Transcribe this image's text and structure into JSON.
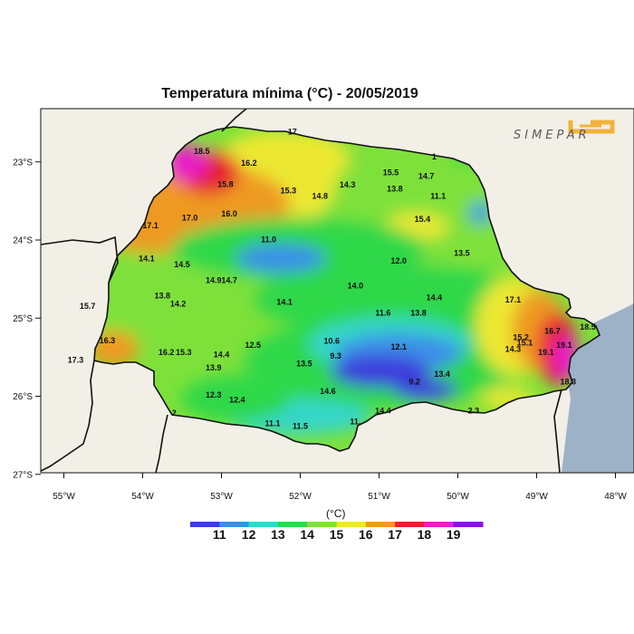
{
  "title": "Temperatura mínima   (°C)  -  20/05/2019",
  "logo": "SIMEPAR",
  "legend": {
    "unit": "(°C)",
    "labels": [
      "11",
      "12",
      "13",
      "14",
      "15",
      "16",
      "17",
      "18",
      "19"
    ],
    "colors": [
      "#3d3ddc",
      "#3a8fe8",
      "#36d6c8",
      "#2ed84a",
      "#7ee13a",
      "#ece832",
      "#ee9a20",
      "#e6202e",
      "#e81ec8",
      "#8a12d8"
    ]
  },
  "axes": {
    "x_ticks": [
      "55°W",
      "54°W",
      "53°W",
      "52°W",
      "51°W",
      "50°W",
      "49°W",
      "48°W"
    ],
    "y_ticks": [
      "23°S",
      "24°S",
      "25°S",
      "26°S",
      "27°S"
    ]
  },
  "colors": {
    "land_background": "#f1efe6",
    "ocean": "#9db2c7",
    "border": "#111111"
  },
  "stations": [
    {
      "v": "18.5",
      "lon": -53.25,
      "lat": -22.9
    },
    {
      "v": "16.2",
      "lon": -52.65,
      "lat": -23.05
    },
    {
      "v": "15.8",
      "lon": -52.95,
      "lat": -23.32
    },
    {
      "v": "17",
      "lon": -52.1,
      "lat": -22.65
    },
    {
      "v": "17.0",
      "lon": -53.4,
      "lat": -23.75
    },
    {
      "v": "17.1",
      "lon": -53.9,
      "lat": -23.85
    },
    {
      "v": "16.0",
      "lon": -52.9,
      "lat": -23.7
    },
    {
      "v": "15.3",
      "lon": -52.15,
      "lat": -23.4
    },
    {
      "v": "14.8",
      "lon": -51.75,
      "lat": -23.47
    },
    {
      "v": "14.3",
      "lon": -51.4,
      "lat": -23.33
    },
    {
      "v": "15.5",
      "lon": -50.85,
      "lat": -23.17
    },
    {
      "v": "13.8",
      "lon": -50.8,
      "lat": -23.38
    },
    {
      "v": "14.7",
      "lon": -50.4,
      "lat": -23.22
    },
    {
      "v": "1",
      "lon": -50.3,
      "lat": -22.97
    },
    {
      "v": "11.1",
      "lon": -50.25,
      "lat": -23.47
    },
    {
      "v": "15.4",
      "lon": -50.45,
      "lat": -23.77
    },
    {
      "v": "11.0",
      "lon": -52.4,
      "lat": -24.03
    },
    {
      "v": "14.1",
      "lon": -53.95,
      "lat": -24.27
    },
    {
      "v": "14.5",
      "lon": -53.5,
      "lat": -24.35
    },
    {
      "v": "13.5",
      "lon": -49.95,
      "lat": -24.2
    },
    {
      "v": "12.0",
      "lon": -50.75,
      "lat": -24.3
    },
    {
      "v": "14.9",
      "lon": -53.1,
      "lat": -24.55
    },
    {
      "v": "14.7",
      "lon": -52.9,
      "lat": -24.55
    },
    {
      "v": "14.0",
      "lon": -51.3,
      "lat": -24.62
    },
    {
      "v": "13.8",
      "lon": -53.75,
      "lat": -24.75
    },
    {
      "v": "14.2",
      "lon": -53.55,
      "lat": -24.85
    },
    {
      "v": "14.1",
      "lon": -52.2,
      "lat": -24.83
    },
    {
      "v": "15.7",
      "lon": -54.7,
      "lat": -24.88
    },
    {
      "v": "14.4",
      "lon": -50.3,
      "lat": -24.77
    },
    {
      "v": "17.1",
      "lon": -49.3,
      "lat": -24.8
    },
    {
      "v": "11.6",
      "lon": -50.95,
      "lat": -24.97
    },
    {
      "v": "13.8",
      "lon": -50.5,
      "lat": -24.97
    },
    {
      "v": "16.3",
      "lon": -54.45,
      "lat": -25.32
    },
    {
      "v": "12.5",
      "lon": -52.6,
      "lat": -25.38
    },
    {
      "v": "10.6",
      "lon": -51.6,
      "lat": -25.33
    },
    {
      "v": "12.1",
      "lon": -50.75,
      "lat": -25.4
    },
    {
      "v": "16.7",
      "lon": -48.8,
      "lat": -25.2
    },
    {
      "v": "15.2",
      "lon": -49.2,
      "lat": -25.28
    },
    {
      "v": "15.1",
      "lon": -49.15,
      "lat": -25.35
    },
    {
      "v": "14.3",
      "lon": -49.3,
      "lat": -25.43
    },
    {
      "v": "16.2",
      "lon": -53.7,
      "lat": -25.47
    },
    {
      "v": "15.3",
      "lon": -53.48,
      "lat": -25.47
    },
    {
      "v": "14.4",
      "lon": -53.0,
      "lat": -25.5
    },
    {
      "v": "9.3",
      "lon": -51.55,
      "lat": -25.52
    },
    {
      "v": "19.1",
      "lon": -48.65,
      "lat": -25.38
    },
    {
      "v": "19.1",
      "lon": -48.88,
      "lat": -25.47
    },
    {
      "v": "18.5",
      "lon": -48.35,
      "lat": -25.15
    },
    {
      "v": "17.3",
      "lon": -54.85,
      "lat": -25.57
    },
    {
      "v": "13.9",
      "lon": -53.1,
      "lat": -25.67
    },
    {
      "v": "13.5",
      "lon": -51.95,
      "lat": -25.62
    },
    {
      "v": "13.4",
      "lon": -50.2,
      "lat": -25.75
    },
    {
      "v": "9.2",
      "lon": -50.55,
      "lat": -25.85
    },
    {
      "v": "18.3",
      "lon": -48.6,
      "lat": -25.85
    },
    {
      "v": "14.6",
      "lon": -51.65,
      "lat": -25.97
    },
    {
      "v": "12.3",
      "lon": -53.1,
      "lat": -26.02
    },
    {
      "v": "12.4",
      "lon": -52.8,
      "lat": -26.08
    },
    {
      "v": "14.4",
      "lon": -50.95,
      "lat": -26.22
    },
    {
      "v": "2",
      "lon": -53.6,
      "lat": -26.25
    },
    {
      "v": "2.3",
      "lon": -49.8,
      "lat": -26.22
    },
    {
      "v": "11.1",
      "lon": -52.35,
      "lat": -26.38
    },
    {
      "v": "11.5",
      "lon": -52.0,
      "lat": -26.42
    },
    {
      "v": "11.",
      "lon": -51.3,
      "lat": -26.36
    }
  ]
}
